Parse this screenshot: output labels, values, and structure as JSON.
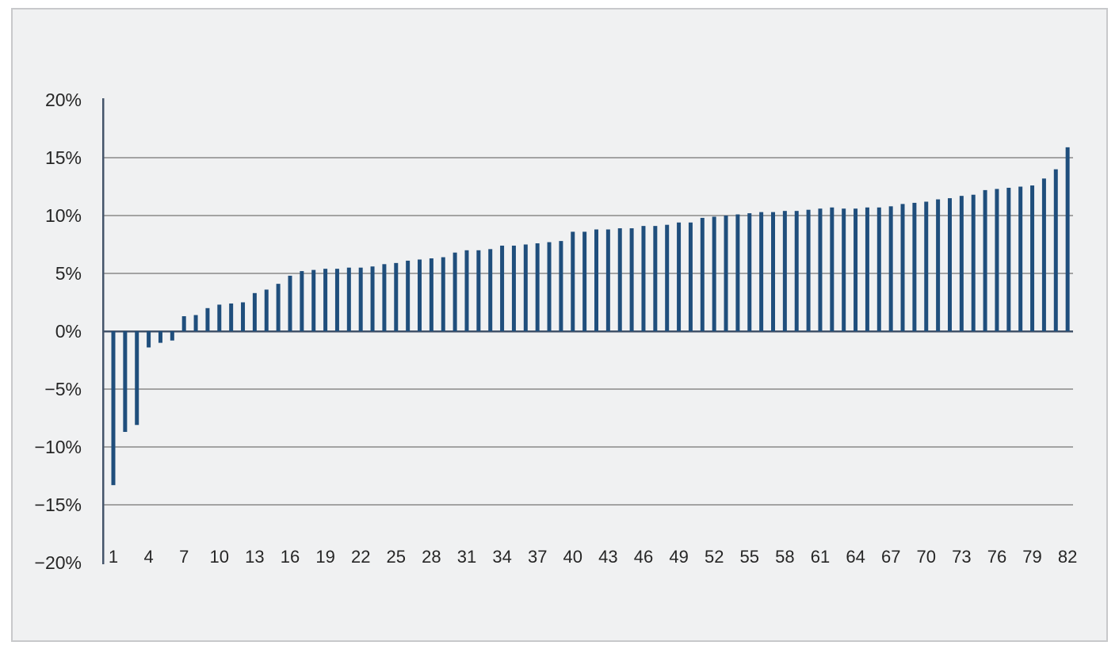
{
  "window": {
    "background_color": "#ffffff"
  },
  "panel": {
    "background_color": "#f0f1f2",
    "border_color": "#c8c9cb"
  },
  "chart_data": {
    "type": "bar",
    "title": "",
    "subtitle": "",
    "xlabel": "",
    "ylabel": "",
    "legend": "none",
    "grid": "horizontal",
    "ylim": [
      -20,
      20
    ],
    "ytick_interval": 5,
    "ytick_values": [
      20,
      15,
      10,
      5,
      0,
      -5,
      -10,
      -15,
      -20
    ],
    "ytick_labels": [
      "20%",
      "15%",
      "10%",
      "5%",
      "0%",
      "−5%",
      "−10%",
      "−15%",
      "−20%"
    ],
    "xtick_labels": [
      "1",
      "4",
      "7",
      "10",
      "13",
      "16",
      "19",
      "22",
      "25",
      "28",
      "31",
      "34",
      "37",
      "40",
      "43",
      "46",
      "49",
      "52",
      "55",
      "58",
      "61",
      "64",
      "67",
      "70",
      "73",
      "76",
      "79",
      "82"
    ],
    "xtick_step": 3,
    "categories": [
      1,
      2,
      3,
      4,
      5,
      6,
      7,
      8,
      9,
      10,
      11,
      12,
      13,
      14,
      15,
      16,
      17,
      18,
      19,
      20,
      21,
      22,
      23,
      24,
      25,
      26,
      27,
      28,
      29,
      30,
      31,
      32,
      33,
      34,
      35,
      36,
      37,
      38,
      39,
      40,
      41,
      42,
      43,
      44,
      45,
      46,
      47,
      48,
      49,
      50,
      51,
      52,
      53,
      54,
      55,
      56,
      57,
      58,
      59,
      60,
      61,
      62,
      63,
      64,
      65,
      66,
      67,
      68,
      69,
      70,
      71,
      72,
      73,
      74,
      75,
      76,
      77,
      78,
      79,
      80,
      81,
      82
    ],
    "values": [
      -13.3,
      -8.7,
      -8.1,
      -1.4,
      -1.0,
      -0.8,
      1.3,
      1.4,
      2.0,
      2.3,
      2.4,
      2.5,
      3.3,
      3.6,
      4.1,
      4.8,
      5.2,
      5.3,
      5.4,
      5.4,
      5.5,
      5.5,
      5.6,
      5.8,
      5.9,
      6.1,
      6.2,
      6.3,
      6.4,
      6.8,
      7.0,
      7.0,
      7.1,
      7.4,
      7.4,
      7.5,
      7.6,
      7.7,
      7.8,
      8.6,
      8.6,
      8.8,
      8.8,
      8.9,
      8.9,
      9.1,
      9.1,
      9.2,
      9.4,
      9.4,
      9.8,
      9.9,
      10.0,
      10.1,
      10.2,
      10.3,
      10.3,
      10.4,
      10.4,
      10.5,
      10.6,
      10.7,
      10.6,
      10.6,
      10.7,
      10.7,
      10.8,
      11.0,
      11.1,
      11.2,
      11.4,
      11.5,
      11.7,
      11.8,
      12.2,
      12.3,
      12.4,
      12.5,
      12.6,
      13.2,
      14.0,
      15.9
    ],
    "bar_color": "#1f4e7c",
    "gridline_color": "#a3a3a3",
    "axis_color": "#44546a",
    "label_color": "#262626"
  }
}
